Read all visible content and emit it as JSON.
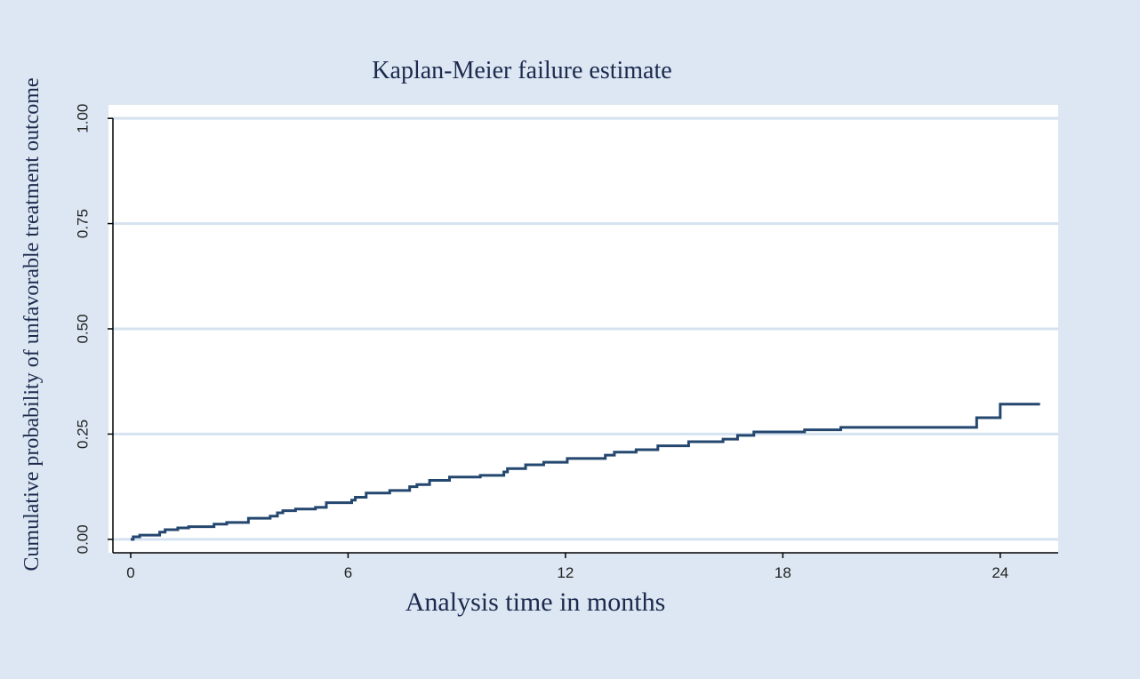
{
  "chart_data": {
    "type": "line",
    "step": "post",
    "title": "Kaplan-Meier failure estimate",
    "x_label": "Analysis time in months",
    "y_label": "Cumulative probability of unfavorable treatment outcome",
    "x": [
      0,
      0.07,
      0.25,
      0.8,
      0.95,
      1.3,
      1.6,
      2.3,
      2.65,
      3.25,
      3.85,
      4.05,
      4.2,
      4.55,
      5.1,
      5.4,
      6.1,
      6.2,
      6.5,
      7.15,
      7.7,
      7.9,
      8.25,
      8.8,
      9.65,
      10.3,
      10.4,
      10.9,
      11.4,
      12.05,
      13.1,
      13.35,
      13.95,
      14.55,
      15.4,
      16.35,
      16.75,
      17.2,
      18.6,
      19.6,
      23.35,
      24.0,
      25.1
    ],
    "series": [
      {
        "color": "#24476f",
        "values": [
          0,
          0.006,
          0.01,
          0.017,
          0.023,
          0.027,
          0.03,
          0.036,
          0.04,
          0.05,
          0.055,
          0.063,
          0.068,
          0.072,
          0.076,
          0.087,
          0.093,
          0.1,
          0.11,
          0.116,
          0.125,
          0.13,
          0.14,
          0.148,
          0.152,
          0.16,
          0.168,
          0.177,
          0.183,
          0.192,
          0.2,
          0.207,
          0.213,
          0.222,
          0.232,
          0.238,
          0.247,
          0.255,
          0.26,
          0.266,
          0.289,
          0.321,
          0.321
        ]
      }
    ],
    "xlim": [
      -0.49,
      25.6
    ],
    "ylim": [
      -0.032,
      1.032
    ],
    "xticks": [
      0,
      6,
      12,
      18,
      24
    ],
    "yticks": [
      {
        "value": 0,
        "label": "0.00"
      },
      {
        "value": 0.25,
        "label": "0.25"
      },
      {
        "value": 0.5,
        "label": "0.50"
      },
      {
        "value": 0.75,
        "label": "0.75"
      },
      {
        "value": 1,
        "label": "1.00"
      }
    ],
    "grid": true
  }
}
